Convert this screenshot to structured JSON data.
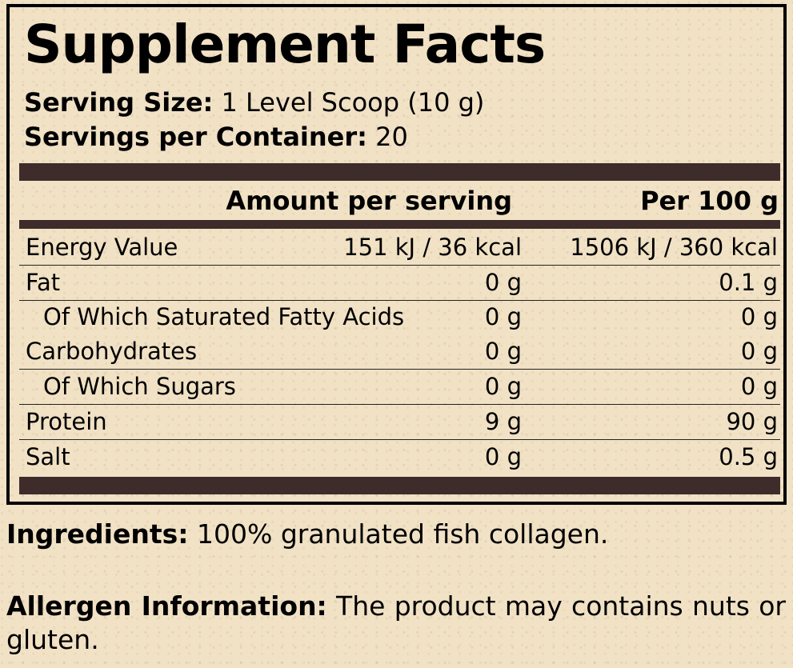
{
  "title": "Supplement Facts",
  "serving_size": {
    "label": "Serving Size:",
    "value": "1 Level Scoop (10 g)"
  },
  "servings_per_container": {
    "label": "Servings per Container:",
    "value": "20"
  },
  "columns": {
    "per_serving": "Amount per serving",
    "per_100g": "Per 100 g"
  },
  "rows": [
    {
      "name": "Energy Value",
      "per_serving": "151 kJ / 36 kcal",
      "per_100g": "1506 kJ / 360 kcal"
    },
    {
      "name": "Fat",
      "per_serving": "0 g",
      "per_100g": "0.1 g"
    },
    {
      "name": "Of Which Saturated Fatty Acids",
      "per_serving": "0 g",
      "per_100g": "0 g"
    },
    {
      "name": "Carbohydrates",
      "per_serving": "0 g",
      "per_100g": "0 g"
    },
    {
      "name": "Of Which Sugars",
      "per_serving": "0 g",
      "per_100g": "0 g"
    },
    {
      "name": "Protein",
      "per_serving": "9 g",
      "per_100g": "90 g"
    },
    {
      "name": "Salt",
      "per_serving": "0 g",
      "per_100g": "0.5 g"
    }
  ],
  "ingredients": {
    "label": "Ingredients:",
    "value": "100% granulated fish collagen."
  },
  "allergen": {
    "label": "Allergen Information:",
    "value": "The product may contains nuts or gluten."
  },
  "colors": {
    "bar": "#3e2c2b",
    "background": "#f1e2c6"
  }
}
